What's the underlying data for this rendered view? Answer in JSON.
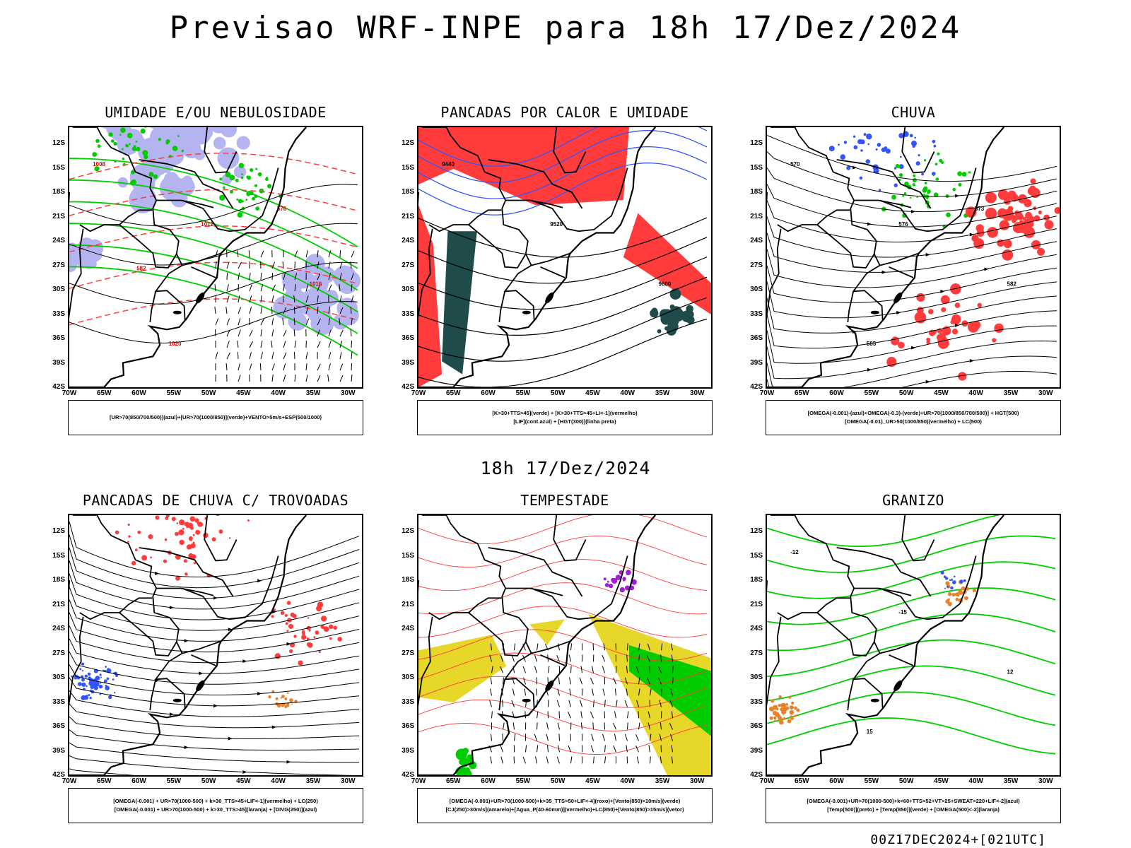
{
  "title": "Previsao WRF-INPE  para 18h 17/Dez/2024",
  "subtitle": "18h 17/Dez/2024",
  "footer": "00Z17DEC2024+[021UTC]",
  "colors": {
    "red": "#ff3b3b",
    "green": "#00cc00",
    "blue": "#3355ff",
    "lavender": "#b4b4f0",
    "darkteal": "#1f4b4b",
    "yellow": "#e6d728",
    "orange": "#e8822a",
    "purple": "#a020d0",
    "black": "#000000"
  },
  "panels": [
    {
      "title": "UMIDADE E/OU NEBULOSIDADE",
      "legend": [
        "[UR>70(850/700/500)](azul)+[UR>70(1000/850)](verde)+VENTO>5m/s+ESP(500/1000)"
      ]
    },
    {
      "title": "PANCADAS POR CALOR E UMIDADE",
      "legend": [
        "[K>30+TTS>45](verde)  +  [K>30+TTS>45+LI<-1](vermelho)",
        "[LIF](cont.azul)  +  [HGT(300)](linha preta)"
      ]
    },
    {
      "title": "CHUVA",
      "legend": [
        "[OMEGA(-0.001)-(azul)+OMEGA(-0.3)-(verde)+UR>70(1000/850/700/500)]  +  HGT(500)",
        "[OMEGA(-0.01)_UR>50(1000/850)(vermelho)  +  LC(500)"
      ]
    },
    {
      "title": "PANCADAS DE CHUVA C/ TROVOADAS",
      "legend": [
        "[OMEGA(-0.001)  +  UR>70(1000-500)  +  k>30_TTS>45+LIF<-1](vermelho)  +  LC(250)",
        "[OMEGA(-0.001)  +  UR>70(1000-500)  +  k>30_TTS>45](laranja)  +  [DIVG(250)](azul)"
      ]
    },
    {
      "title": "TEMPESTADE",
      "legend": [
        "[OMEGA(-0.001)+UR>70(1000-500)+k>35_TTS>50+LIF<-4](roxo)+[Vento(850)>10m/s](verde)",
        "[CJ(250)>30m/s](amarelo)+[Agua_P(40-60mm)](vermelho)+LC(850)+[Vento(850)>15m/s](vetor)"
      ]
    },
    {
      "title": "GRANIZO",
      "legend": [
        "[OMEGA(-0.001)+UR>70(1000-500)+k<60+TTS>52+VT>25+SWEAT>220+LIF<-2](azul)",
        "[Temp(500)](preto)  +  [Temp(850)](verde)  +  [OMEGA(500)<-2](laranja)"
      ]
    }
  ],
  "axes": {
    "lat_labels": [
      "12S",
      "15S",
      "18S",
      "21S",
      "24S",
      "27S",
      "30S",
      "33S",
      "36S",
      "39S",
      "42S"
    ],
    "lon_labels": [
      "70W",
      "65W",
      "60W",
      "55W",
      "50W",
      "45W",
      "40W",
      "35W",
      "30W"
    ],
    "lat_range": [
      -42,
      -10
    ],
    "lon_range": [
      -70,
      -28
    ]
  },
  "contour_labels": {
    "p1": [
      "1008",
      "1012",
      "1016",
      "1020",
      "576",
      "582"
    ],
    "p2": [
      "9440",
      "9520",
      "9600"
    ],
    "p3": [
      "570",
      "576",
      "582",
      "585",
      "573"
    ],
    "p6": [
      "-12",
      "-15",
      "12",
      "15"
    ]
  }
}
